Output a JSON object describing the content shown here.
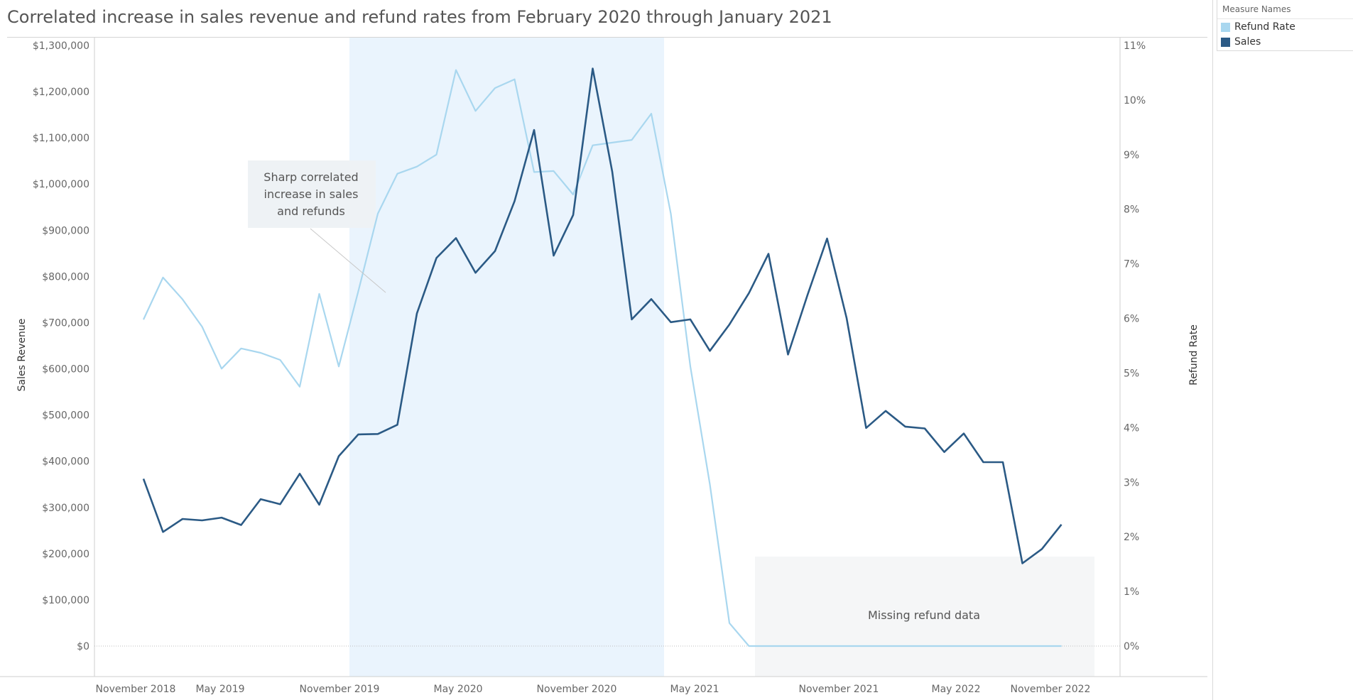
{
  "title": "Correlated increase in sales revenue and refund rates from February 2020 through January 2021",
  "legend": {
    "title": "Measure Names",
    "items": [
      {
        "label": "Refund Rate",
        "color": "#a9d7ef"
      },
      {
        "label": "Sales",
        "color": "#2b5a85"
      }
    ]
  },
  "chart_data": {
    "type": "line",
    "x_tick_labels": [
      "November 2018",
      "May 2019",
      "November 2019",
      "May 2020",
      "November 2020",
      "May 2021",
      "November 2021",
      "May 2022",
      "November 2022"
    ],
    "x_start": "2019-01",
    "x_end": "2022-12",
    "ylabel": "Sales Revenue",
    "ylim": [
      0,
      1300000
    ],
    "y_ticks": [
      "$0",
      "$100,000",
      "$200,000",
      "$300,000",
      "$400,000",
      "$500,000",
      "$600,000",
      "$700,000",
      "$800,000",
      "$900,000",
      "$1,000,000",
      "$1,100,000",
      "$1,200,000",
      "$1,300,000"
    ],
    "y2label": "Refund Rate",
    "y2lim": [
      0,
      11
    ],
    "y2_ticks": [
      "0%",
      "1%",
      "2%",
      "3%",
      "4%",
      "5%",
      "6%",
      "7%",
      "8%",
      "9%",
      "10%",
      "11%"
    ],
    "series": [
      {
        "name": "Sales",
        "axis": "left",
        "color": "#2b5a85",
        "values": [
          362000,
          247000,
          275000,
          272000,
          278000,
          262000,
          318000,
          307000,
          373000,
          306000,
          411000,
          458000,
          459000,
          479000,
          720000,
          840000,
          883000,
          808000,
          855000,
          963000,
          1117000,
          845000,
          933000,
          1250000,
          1027000,
          707000,
          751000,
          701000,
          707000,
          639000,
          696000,
          764000,
          849000,
          631000,
          760000,
          882000,
          710000,
          472000,
          509000,
          475000,
          471000,
          420000,
          460000,
          398000,
          398000,
          179000,
          210000,
          263000
        ]
      },
      {
        "name": "Refund Rate",
        "axis": "right",
        "color": "#a9d7ef",
        "values": [
          5.98,
          6.75,
          6.35,
          5.85,
          5.08,
          5.45,
          5.37,
          5.24,
          4.75,
          6.45,
          5.12,
          6.5,
          7.92,
          8.65,
          8.78,
          9.0,
          10.55,
          9.8,
          10.22,
          10.38,
          8.68,
          8.7,
          8.27,
          9.17,
          9.22,
          9.27,
          9.75,
          7.92,
          5.12,
          2.96,
          0.42,
          0,
          0,
          0,
          0,
          0,
          0,
          0,
          0,
          0,
          0,
          0,
          0,
          0,
          0,
          0,
          0,
          0
        ]
      }
    ],
    "annotations": [
      {
        "text": [
          "Sharp correlated",
          "increase in sales",
          "and refunds"
        ]
      },
      {
        "text": [
          "Missing refund data"
        ]
      }
    ],
    "grid": false,
    "legend_position": "top-right"
  }
}
